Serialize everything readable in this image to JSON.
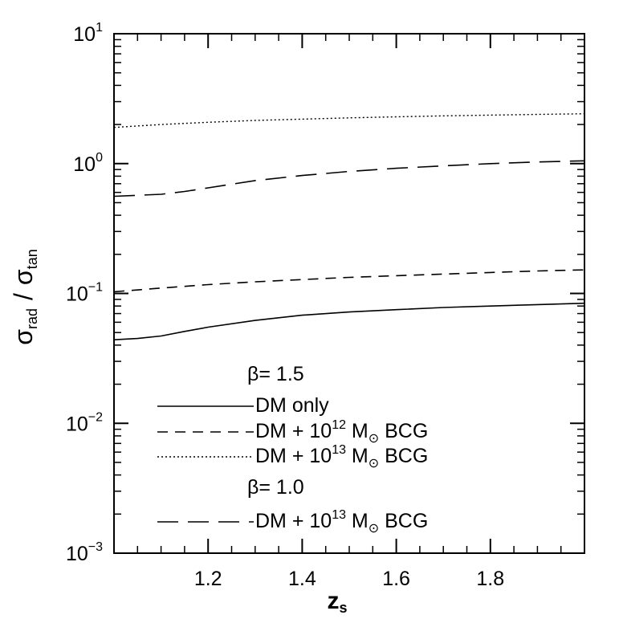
{
  "chart_data": {
    "type": "line",
    "xlabel": "z",
    "xlabel_sub": "s",
    "ylabel_num": "σ",
    "ylabel_num_sub": "rad",
    "ylabel_slash": "/",
    "ylabel_den": "σ",
    "ylabel_den_sub": "tan",
    "xlim": [
      1.0,
      2.0
    ],
    "ylim": [
      0.001,
      10
    ],
    "yscale": "log",
    "x_ticks": [
      {
        "value": 1.2,
        "label": "1.2"
      },
      {
        "value": 1.4,
        "label": "1.4"
      },
      {
        "value": 1.6,
        "label": "1.6"
      },
      {
        "value": 1.8,
        "label": "1.8"
      }
    ],
    "y_ticks": [
      {
        "value": 10,
        "base": "10",
        "exp": "1"
      },
      {
        "value": 1,
        "base": "10",
        "exp": "0"
      },
      {
        "value": 0.1,
        "base": "10",
        "exp": "−1"
      },
      {
        "value": 0.01,
        "base": "10",
        "exp": "−2"
      },
      {
        "value": 0.001,
        "base": "10",
        "exp": "−3"
      }
    ],
    "grid": false,
    "legend_placement": "bottom-center",
    "legend": {
      "group1_title": "β=  1.5",
      "group2_title": "β=  1.0",
      "entries": [
        {
          "series": 0,
          "text": "DM  only"
        },
        {
          "series": 1,
          "prefix": "DM  +  10",
          "exp": "12",
          "mid": " M",
          "sub": "⊙",
          "suffix": "  BCG"
        },
        {
          "series": 2,
          "prefix": "DM  +  10",
          "exp": "13",
          "mid": " M",
          "sub": "⊙",
          "suffix": "  BCG"
        },
        {
          "series": 3,
          "prefix": "DM  +  10",
          "exp": "13",
          "mid": " M",
          "sub": "⊙",
          "suffix": "  BCG"
        }
      ]
    },
    "series": [
      {
        "style": "solid",
        "x": [
          1.0,
          1.05,
          1.1,
          1.15,
          1.2,
          1.3,
          1.4,
          1.5,
          1.6,
          1.7,
          1.8,
          1.9,
          2.0
        ],
        "y": [
          0.044,
          0.045,
          0.047,
          0.051,
          0.055,
          0.062,
          0.068,
          0.072,
          0.075,
          0.078,
          0.08,
          0.082,
          0.084
        ]
      },
      {
        "style": "dashed",
        "x": [
          1.0,
          1.1,
          1.2,
          1.3,
          1.4,
          1.5,
          1.6,
          1.7,
          1.8,
          1.9,
          2.0
        ],
        "y": [
          0.103,
          0.11,
          0.117,
          0.123,
          0.128,
          0.133,
          0.137,
          0.141,
          0.145,
          0.149,
          0.152
        ]
      },
      {
        "style": "dotted",
        "x": [
          1.0,
          1.1,
          1.2,
          1.3,
          1.4,
          1.5,
          1.6,
          1.7,
          1.8,
          1.9,
          2.0
        ],
        "y": [
          1.9,
          2.0,
          2.08,
          2.15,
          2.2,
          2.25,
          2.29,
          2.33,
          2.36,
          2.39,
          2.42
        ]
      },
      {
        "style": "longdash",
        "x": [
          1.0,
          1.1,
          1.15,
          1.2,
          1.3,
          1.4,
          1.5,
          1.6,
          1.7,
          1.8,
          1.9,
          2.0
        ],
        "y": [
          0.56,
          0.58,
          0.61,
          0.65,
          0.74,
          0.81,
          0.87,
          0.92,
          0.96,
          1.0,
          1.03,
          1.05
        ]
      }
    ]
  }
}
